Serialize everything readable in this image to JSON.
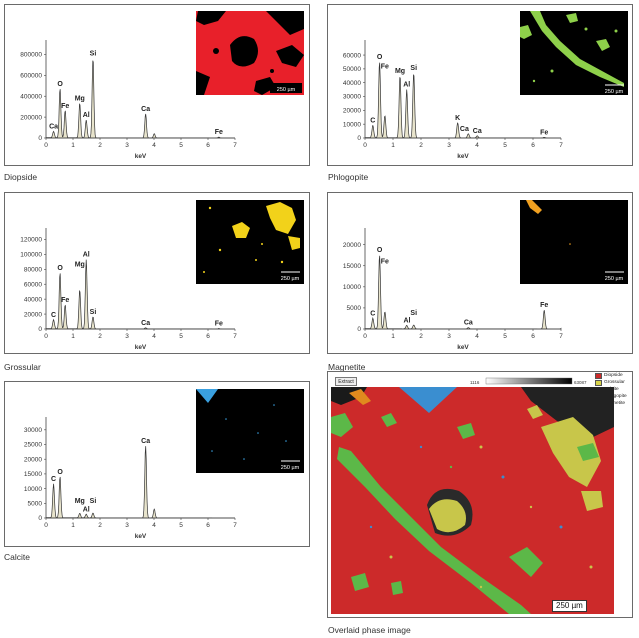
{
  "colors": {
    "spectrum_line": "#333333",
    "spectrum_fill": "#e8e4cc",
    "axis": "#444444"
  },
  "panels": [
    {
      "caption": "Diopside",
      "map": {
        "color": "#e8202a",
        "background": "#000000",
        "scale": "250 µm"
      },
      "chart_data": {
        "type": "line",
        "xlabel": "keV",
        "xlim": [
          0,
          7
        ],
        "ylim": [
          0,
          900000
        ],
        "x_ticks": [
          0,
          1,
          2,
          3,
          4,
          5,
          6,
          7
        ],
        "y_ticks": [
          0,
          200000,
          400000,
          600000,
          800000
        ],
        "y_tick_labels": [
          "0",
          "200000",
          "400000",
          "600000",
          "800000"
        ],
        "peaks": [
          [
            0.28,
            60000
          ],
          [
            0.52,
            470000
          ],
          [
            0.71,
            260000
          ],
          [
            1.25,
            330000
          ],
          [
            1.49,
            170000
          ],
          [
            1.74,
            760000
          ],
          [
            3.69,
            230000
          ],
          [
            4.01,
            40000
          ],
          [
            6.4,
            8000
          ]
        ],
        "labels": [
          {
            "text": "Ca",
            "x": 0.28,
            "y": 60000
          },
          {
            "text": "O",
            "x": 0.52,
            "y": 470000
          },
          {
            "text": "Fe",
            "x": 0.71,
            "y": 260000
          },
          {
            "text": "Mg",
            "x": 1.25,
            "y": 330000
          },
          {
            "text": "Al",
            "x": 1.49,
            "y": 170000
          },
          {
            "text": "Si",
            "x": 1.74,
            "y": 760000
          },
          {
            "text": "Ca",
            "x": 3.69,
            "y": 230000
          },
          {
            "text": "Fe",
            "x": 6.4,
            "y": 8000
          }
        ]
      }
    },
    {
      "caption": "Phlogopite",
      "map": {
        "color": "#8ed04a",
        "background": "#000000",
        "scale": "250 µm"
      },
      "chart_data": {
        "type": "line",
        "xlabel": "keV",
        "xlim": [
          0,
          7
        ],
        "ylim": [
          0,
          68000
        ],
        "x_ticks": [
          0,
          1,
          2,
          3,
          4,
          5,
          6,
          7
        ],
        "y_ticks": [
          0,
          10000,
          20000,
          30000,
          40000,
          50000,
          60000
        ],
        "y_tick_labels": [
          "0",
          "10000",
          "20000",
          "30000",
          "40000",
          "50000",
          "60000"
        ],
        "peaks": [
          [
            0.28,
            9000
          ],
          [
            0.52,
            55000
          ],
          [
            0.71,
            16000
          ],
          [
            1.25,
            45000
          ],
          [
            1.49,
            35000
          ],
          [
            1.74,
            47000
          ],
          [
            3.31,
            11000
          ],
          [
            3.69,
            3000
          ],
          [
            4.01,
            1500
          ],
          [
            6.4,
            500
          ]
        ],
        "labels": [
          {
            "text": "C",
            "x": 0.28,
            "y": 9000
          },
          {
            "text": "O",
            "x": 0.52,
            "y": 55000
          },
          {
            "text": "Fe",
            "x": 0.71,
            "y": 48000
          },
          {
            "text": "Mg",
            "x": 1.25,
            "y": 45000
          },
          {
            "text": "Al",
            "x": 1.49,
            "y": 35000
          },
          {
            "text": "Si",
            "x": 1.74,
            "y": 47000
          },
          {
            "text": "K",
            "x": 3.31,
            "y": 11000
          },
          {
            "text": "Ca",
            "x": 3.55,
            "y": 3000
          },
          {
            "text": "Ca",
            "x": 4.01,
            "y": 1500
          },
          {
            "text": "Fe",
            "x": 6.4,
            "y": 500
          }
        ]
      }
    },
    {
      "caption": "Grossular",
      "map": {
        "color": "#f2d21a",
        "background": "#000000",
        "scale": "250 µm"
      },
      "chart_data": {
        "type": "line",
        "xlabel": "keV",
        "xlim": [
          0,
          7
        ],
        "ylim": [
          0,
          130000
        ],
        "x_ticks": [
          0,
          1,
          2,
          3,
          4,
          5,
          6,
          7
        ],
        "y_ticks": [
          0,
          20000,
          40000,
          60000,
          80000,
          100000,
          120000
        ],
        "y_tick_labels": [
          "0",
          "20000",
          "40000",
          "60000",
          "80000",
          "100000",
          "120000"
        ],
        "peaks": [
          [
            0.28,
            12000
          ],
          [
            0.52,
            75000
          ],
          [
            0.71,
            32000
          ],
          [
            1.25,
            52000
          ],
          [
            1.49,
            93000
          ],
          [
            1.74,
            16000
          ],
          [
            3.69,
            1500
          ],
          [
            6.4,
            600
          ]
        ],
        "labels": [
          {
            "text": "C",
            "x": 0.28,
            "y": 12000
          },
          {
            "text": "O",
            "x": 0.52,
            "y": 75000
          },
          {
            "text": "Fe",
            "x": 0.71,
            "y": 32000
          },
          {
            "text": "Mg",
            "x": 1.25,
            "y": 80000
          },
          {
            "text": "Al",
            "x": 1.49,
            "y": 93000
          },
          {
            "text": "Si",
            "x": 1.74,
            "y": 16000
          },
          {
            "text": "Ca",
            "x": 3.69,
            "y": 1500
          },
          {
            "text": "Fe",
            "x": 6.4,
            "y": 600
          }
        ]
      }
    },
    {
      "caption": "Magnetite",
      "map": {
        "color": "#f0a020",
        "background": "#000000",
        "scale": "250 µm"
      },
      "chart_data": {
        "type": "line",
        "xlabel": "keV",
        "xlim": [
          0,
          7
        ],
        "ylim": [
          0,
          23000
        ],
        "x_ticks": [
          0,
          1,
          2,
          3,
          4,
          5,
          6,
          7
        ],
        "y_ticks": [
          0,
          5000,
          10000,
          15000,
          20000
        ],
        "y_tick_labels": [
          "0",
          "5000",
          "10000",
          "15000",
          "20000"
        ],
        "peaks": [
          [
            0.28,
            2500
          ],
          [
            0.52,
            17500
          ],
          [
            0.71,
            4000
          ],
          [
            1.49,
            800
          ],
          [
            1.74,
            900
          ],
          [
            3.69,
            300
          ],
          [
            6.4,
            4500
          ],
          [
            7.06,
            800
          ]
        ],
        "labels": [
          {
            "text": "C",
            "x": 0.28,
            "y": 2500
          },
          {
            "text": "O",
            "x": 0.52,
            "y": 17500
          },
          {
            "text": "Fe",
            "x": 0.71,
            "y": 14800
          },
          {
            "text": "Al",
            "x": 1.5,
            "y": 800
          },
          {
            "text": "Si",
            "x": 1.74,
            "y": 2600
          },
          {
            "text": "Ca",
            "x": 3.69,
            "y": 300
          },
          {
            "text": "Fe",
            "x": 6.4,
            "y": 4500
          }
        ]
      }
    },
    {
      "caption": "Calcite",
      "map": {
        "color": "#3aa0e0",
        "background": "#000000",
        "scale": "250 µm"
      },
      "chart_data": {
        "type": "line",
        "xlabel": "keV",
        "xlim": [
          0,
          7
        ],
        "ylim": [
          0,
          33000
        ],
        "x_ticks": [
          0,
          1,
          2,
          3,
          4,
          5,
          6,
          7
        ],
        "y_ticks": [
          0,
          5000,
          10000,
          15000,
          20000,
          25000,
          30000
        ],
        "y_tick_labels": [
          "0",
          "5000",
          "10000",
          "15000",
          "20000",
          "25000",
          "30000"
        ],
        "peaks": [
          [
            0.28,
            11500
          ],
          [
            0.52,
            14000
          ],
          [
            1.25,
            1500
          ],
          [
            1.49,
            1200
          ],
          [
            1.74,
            1600
          ],
          [
            3.69,
            24500
          ],
          [
            4.01,
            3000
          ]
        ],
        "labels": [
          {
            "text": "C",
            "x": 0.28,
            "y": 11500
          },
          {
            "text": "O",
            "x": 0.52,
            "y": 14000
          },
          {
            "text": "Mg",
            "x": 1.25,
            "y": 4000
          },
          {
            "text": "Si",
            "x": 1.74,
            "y": 4000
          },
          {
            "text": "Al",
            "x": 1.49,
            "y": 1200
          },
          {
            "text": "Ca",
            "x": 3.69,
            "y": 24500
          }
        ]
      }
    }
  ],
  "overlay": {
    "caption": "Overlaid phase image",
    "extract_label": "Extract",
    "scale": "250 µm",
    "colorbar_min": "1116",
    "colorbar_max": "63087",
    "legend": [
      {
        "label": "Diopside",
        "color": "#cc2a2a"
      },
      {
        "label": "Grossular",
        "color": "#d8d44a"
      },
      {
        "label": "Calcite",
        "color": "#3a8ed0"
      },
      {
        "label": "Phlogopite",
        "color": "#5cb848"
      },
      {
        "label": "Magnetite",
        "color": "#e08a1e"
      }
    ]
  }
}
